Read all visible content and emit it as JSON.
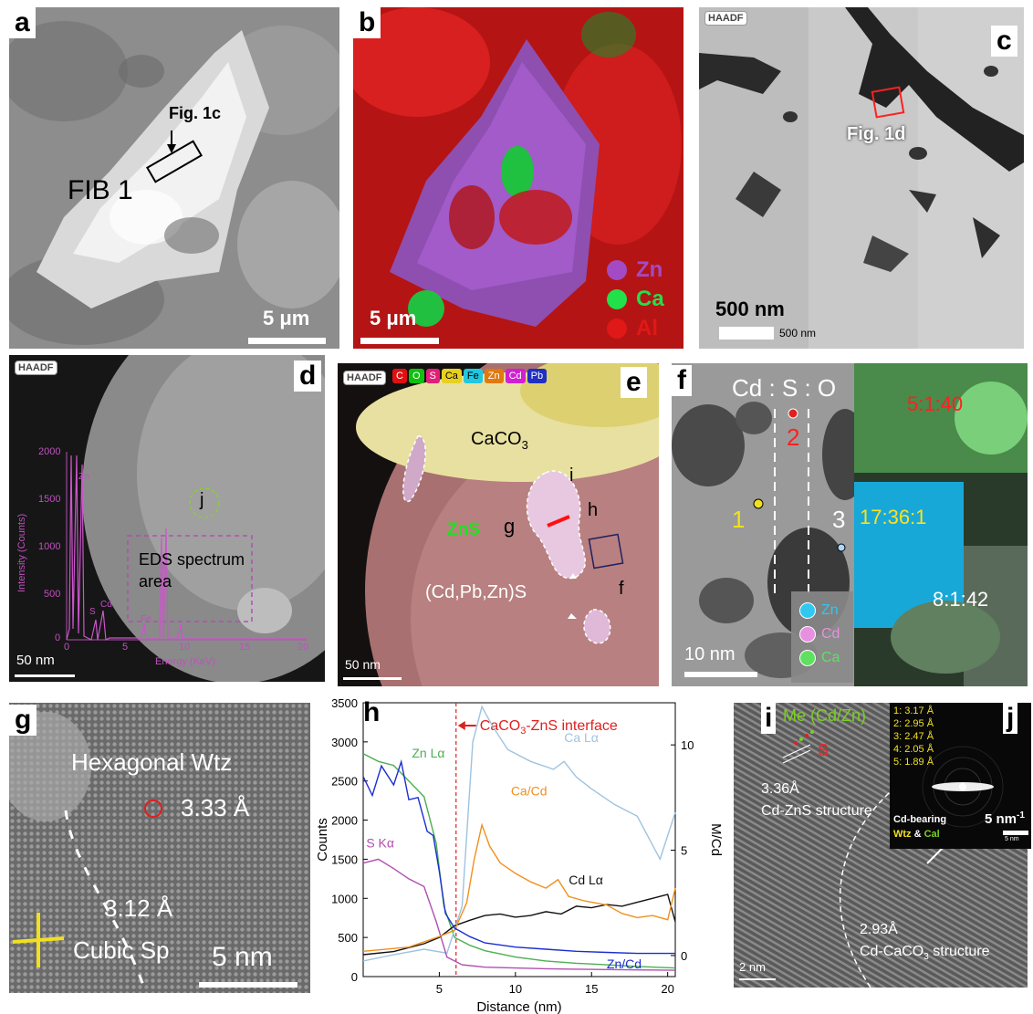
{
  "panel_a": {
    "label": "a",
    "annotation": "Fig. 1c",
    "fib": "FIB 1",
    "scale": "5 μm"
  },
  "panel_b": {
    "label": "b",
    "scale": "5 μm",
    "legend": [
      {
        "name": "Zn",
        "color": "#a24bc4"
      },
      {
        "name": "Ca",
        "color": "#22e04a"
      },
      {
        "name": "Al",
        "color": "#e01818"
      }
    ]
  },
  "panel_c": {
    "label": "c",
    "haadf": "HAADF",
    "annotation": "Fig. 1d",
    "scale": "500 nm",
    "scale_small": "500 nm"
  },
  "panel_d": {
    "label": "d",
    "haadf": "HAADF",
    "scale": "50 nm",
    "marker": "j",
    "box_label": "EDS spectrum area",
    "inset": {
      "ylabel": "Intensity (Counts)",
      "xlabel": "Energy (KeV)",
      "yticks": [
        "0",
        "500",
        "1000",
        "1500",
        "2000"
      ],
      "xticks": [
        "0",
        "5",
        "10",
        "15",
        "20"
      ],
      "peaks": [
        "Zn",
        "S",
        "Cd",
        "Fe"
      ]
    }
  },
  "panel_e": {
    "label": "e",
    "haadf": "HAADF",
    "scale": "50 nm",
    "elements": [
      {
        "name": "C",
        "color": "#e01010"
      },
      {
        "name": "O",
        "color": "#10c010"
      },
      {
        "name": "S",
        "color": "#e0207a"
      },
      {
        "name": "Ca",
        "color": "#e8d020"
      },
      {
        "name": "Fe",
        "color": "#20c8e0"
      },
      {
        "name": "Zn",
        "color": "#e07a10"
      },
      {
        "name": "Cd",
        "color": "#d020d0"
      },
      {
        "name": "Pb",
        "color": "#2030c0"
      }
    ],
    "caco3": "CaCO",
    "caco3_sub": "3",
    "zns": "ZnS",
    "cdpbzn": "(Cd,Pb,Zn)S",
    "markers": {
      "i": "i",
      "g": "g",
      "h": "h",
      "f": "f"
    }
  },
  "panel_f": {
    "label": "f",
    "title": "Cd : S : O",
    "scale": "10 nm",
    "points": [
      "1",
      "2",
      "3"
    ],
    "ratios": [
      {
        "text": "5:1:40",
        "color": "#ff2020"
      },
      {
        "text": "17:36:1",
        "color": "#ffe020"
      },
      {
        "text": "8:1:42",
        "color": "#ffffff"
      }
    ],
    "legend": [
      {
        "name": "Zn",
        "color": "#30c8f0"
      },
      {
        "name": "Cd",
        "color": "#e890e0"
      },
      {
        "name": "Ca",
        "color": "#60e060"
      }
    ]
  },
  "panel_g": {
    "label": "g",
    "hex": "Hexagonal Wtz",
    "d1": "3.33 Å",
    "d2": "3.12 Å",
    "cubic": "Cubic Sp",
    "scale": "5 nm"
  },
  "panel_i": {
    "label": "i",
    "me": "Me (Cd/Zn)",
    "s": "S",
    "d1": "3.36Å",
    "s1": "Cd-ZnS structure",
    "d2": "2.93Å",
    "s2": "Cd-CaCO",
    "s2_sub": "3",
    "s2_tail": " structure",
    "scale": "2 nm"
  },
  "panel_j": {
    "label": "j",
    "rings": [
      "1: 3.17 Å",
      "2: 2.95 Å",
      "3: 2.47 Å",
      "4: 2.05 Å",
      "5: 1.89 Å"
    ],
    "cd": "Cd-bearing",
    "wtz": "Wtz",
    "amp": " & ",
    "cal": "Cal",
    "scale": "5 nm",
    "scale_sup": "-1",
    "scale_small": "5 nm"
  },
  "chart_data": {
    "type": "line",
    "label": "h",
    "xlabel": "Distance (nm)",
    "ylabel": "Counts",
    "y2label": "M/Cd",
    "xlim": [
      0,
      20.5
    ],
    "ylim": [
      0,
      3500
    ],
    "y2lim": [
      -1,
      12
    ],
    "xticks": [
      5,
      10,
      15,
      20
    ],
    "yticks": [
      0,
      500,
      1000,
      1500,
      2000,
      2500,
      3000,
      3500
    ],
    "y2ticks": [
      0,
      5,
      10
    ],
    "interface": {
      "x": 6.1,
      "label": "CaCO",
      "label_sub": "3",
      "label_tail": "-ZnS interface"
    },
    "series": [
      {
        "name": "Zn Lα",
        "axis": "left",
        "color": "#4caf50",
        "x": [
          0,
          1,
          2,
          3,
          4,
          4.8,
          5.3,
          6,
          7,
          8,
          10,
          12,
          14,
          16,
          18,
          20.5
        ],
        "y": [
          2850,
          2750,
          2700,
          2500,
          2300,
          1700,
          900,
          500,
          400,
          330,
          250,
          200,
          170,
          150,
          130,
          110
        ]
      },
      {
        "name": "Ca Lα",
        "axis": "left",
        "color": "#9ec3e0",
        "x": [
          0,
          2,
          4,
          5.5,
          6.5,
          7.2,
          7.8,
          8.5,
          9.5,
          11,
          12.5,
          13.2,
          14,
          15,
          16.5,
          18,
          19.5,
          20.5
        ],
        "y": [
          200,
          280,
          350,
          300,
          900,
          3000,
          3450,
          3200,
          2900,
          2750,
          2650,
          2750,
          2550,
          2400,
          2200,
          2050,
          1500,
          2100
        ]
      },
      {
        "name": "S Kα",
        "axis": "left",
        "color": "#b04fb0",
        "x": [
          0,
          1,
          2,
          3,
          4,
          4.8,
          5.5,
          6.5,
          8,
          10,
          12,
          14,
          16,
          18,
          20.5
        ],
        "y": [
          1450,
          1500,
          1380,
          1250,
          1150,
          700,
          250,
          150,
          120,
          110,
          100,
          95,
          90,
          85,
          80
        ]
      },
      {
        "name": "Cd Lα",
        "axis": "left",
        "color": "#111111",
        "x": [
          0,
          2,
          4,
          5,
          6,
          7,
          8,
          9,
          10,
          11,
          12,
          13,
          14,
          15,
          16,
          17,
          18,
          19,
          20,
          20.5
        ],
        "y": [
          280,
          320,
          420,
          500,
          650,
          720,
          780,
          800,
          760,
          780,
          830,
          800,
          900,
          880,
          920,
          900,
          950,
          1000,
          1050,
          700
        ]
      },
      {
        "name": "Ca/Cd",
        "axis": "right",
        "color": "#f0901e",
        "x": [
          0,
          3,
          5,
          6,
          6.8,
          7.3,
          7.8,
          8.3,
          9,
          10,
          11,
          12,
          12.8,
          13.5,
          14.5,
          16,
          17,
          18,
          19,
          20,
          20.5
        ],
        "y": [
          0.2,
          0.4,
          0.9,
          1.2,
          2.5,
          4.6,
          6.2,
          5.2,
          4.4,
          3.9,
          3.5,
          3.2,
          3.6,
          2.8,
          2.6,
          2.4,
          2.0,
          1.8,
          1.9,
          1.7,
          3.2
        ]
      },
      {
        "name": "Zn/Cd",
        "axis": "right",
        "color": "#1a2fd0",
        "x": [
          0,
          0.6,
          1.2,
          2,
          2.5,
          3,
          3.6,
          4.2,
          4.6,
          5,
          5.4,
          6,
          7,
          8,
          10,
          12,
          14,
          16,
          18,
          20.5
        ],
        "y": [
          8.5,
          7.6,
          9.0,
          8.1,
          9.2,
          7.4,
          7.5,
          5.9,
          5.7,
          4.0,
          2.0,
          1.3,
          0.9,
          0.6,
          0.4,
          0.3,
          0.2,
          0.15,
          0.1,
          0.1
        ]
      }
    ]
  }
}
